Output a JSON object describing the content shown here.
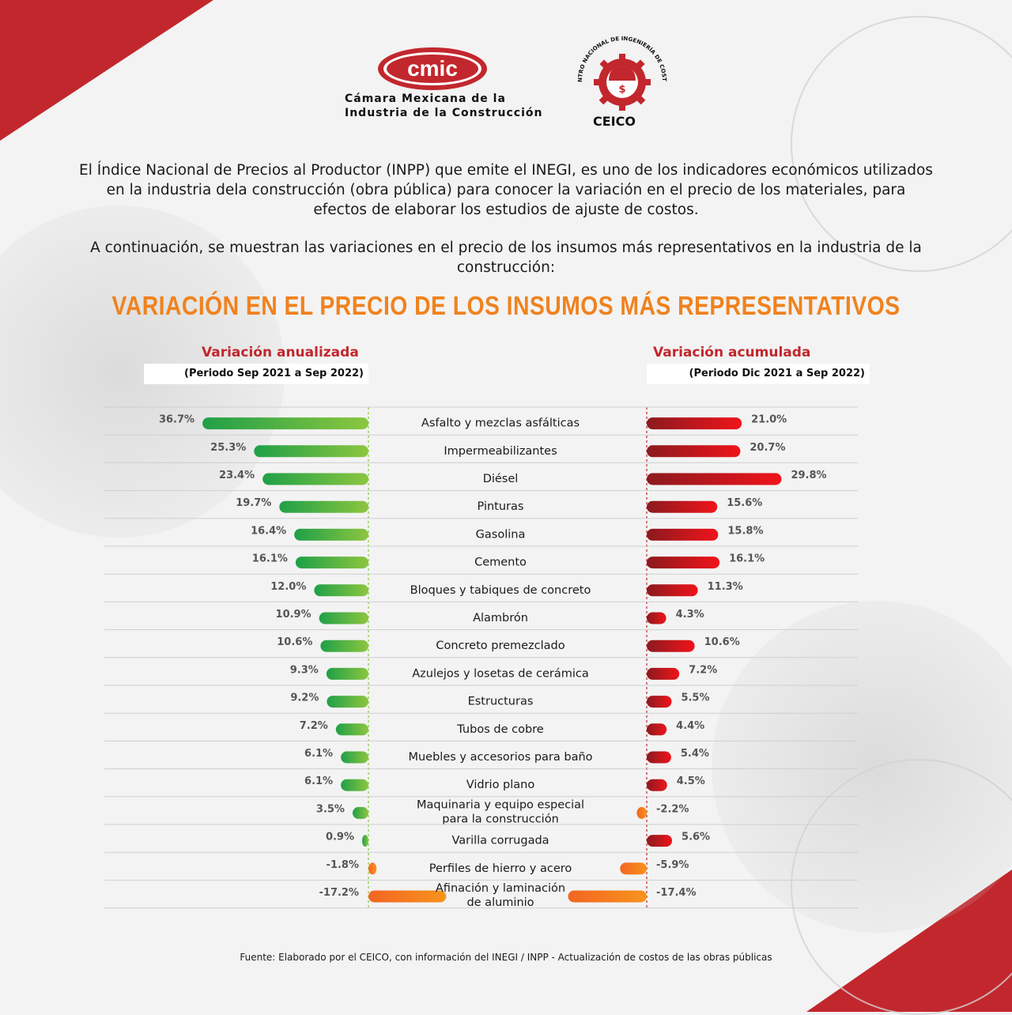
{
  "logos": {
    "cmic_mark": "cmic",
    "cmic_line1": "Cámara Mexicana de la",
    "cmic_line2": "Industria de la Construcción",
    "ceico_arc_text": "CENTRO NACIONAL DE INGENIERÍA DE COSTOS",
    "ceico_label": "CEICO",
    "ceico_symbol": "$"
  },
  "intro": {
    "paragraph1": "El Índice Nacional de Precios al Productor (INPP) que emite el INEGI, es uno de los indicadores económicos utilizados en la industria dela construcción (obra pública) para conocer la variación en el precio de los materiales, para efectos de elaborar los estudios de ajuste de costos.",
    "paragraph2": "A continuación, se muestran las variaciones en el precio de los insumos más representativos en la industria de la construcción:"
  },
  "chart_data": {
    "type": "bar",
    "title": "VARIACIÓN EN EL PRECIO DE LOS INSUMOS MÁS REPRESENTATIVOS",
    "categories": [
      "Asfalto y mezclas asfálticas",
      "Impermeabilizantes",
      "Diésel",
      "Pinturas",
      "Gasolina",
      "Cemento",
      "Bloques y tabiques de concreto",
      "Alambrón",
      "Concreto premezclado",
      "Azulejos y losetas de cerámica",
      "Estructuras",
      "Tubos de cobre",
      "Muebles y accesorios para baño",
      "Vidrio plano",
      "Maquinaria y equipo especial\npara la construcción",
      "Varilla corrugada",
      "Perfiles de hierro y acero",
      "Afinación y laminación\nde aluminio"
    ],
    "series": [
      {
        "name": "Variación anualizada",
        "period": "(Periodo Sep 2021 a Sep 2022)",
        "values": [
          36.7,
          25.3,
          23.4,
          19.7,
          16.4,
          16.1,
          12.0,
          10.9,
          10.6,
          9.3,
          9.2,
          7.2,
          6.1,
          6.1,
          3.5,
          0.9,
          -1.8,
          -17.2
        ],
        "labels": [
          "36.7%",
          "25.3%",
          "23.4%",
          "19.7%",
          "16.4%",
          "16.1%",
          "12.0%",
          "10.9%",
          "10.6%",
          "9.3%",
          "9.2%",
          "7.2%",
          "6.1%",
          "6.1%",
          "3.5%",
          "0.9%",
          "-1.8%",
          "-17.2%"
        ],
        "color": "#2ea84a",
        "color_light": "#8cc63f",
        "negative_color": "#f26522"
      },
      {
        "name": "Variación acumulada",
        "period": "(Periodo Dic 2021 a Sep 2022)",
        "values": [
          21.0,
          20.7,
          29.8,
          15.6,
          15.8,
          16.1,
          11.3,
          4.3,
          10.6,
          7.2,
          5.5,
          4.4,
          5.4,
          4.5,
          -2.2,
          5.6,
          -5.9,
          -17.4
        ],
        "labels": [
          "21.0%",
          "20.7%",
          "29.8%",
          "15.6%",
          "15.8%",
          "16.1%",
          "11.3%",
          "4.3%",
          "10.6%",
          "7.2%",
          "5.5%",
          "4.4%",
          "5.4%",
          "4.5%",
          "-2.2%",
          "5.6%",
          "-5.9%",
          "-17.4%"
        ],
        "color": "#e8161b",
        "color_dark": "#8b1a1f",
        "negative_color": "#f26522"
      }
    ]
  },
  "source": "Fuente: Elaborado por el CEICO, con información del INEGI / INPP - Actualización de costos de las obras públicas",
  "colors": {
    "brand_red": "#c2272d",
    "title_orange": "#f0821e"
  }
}
